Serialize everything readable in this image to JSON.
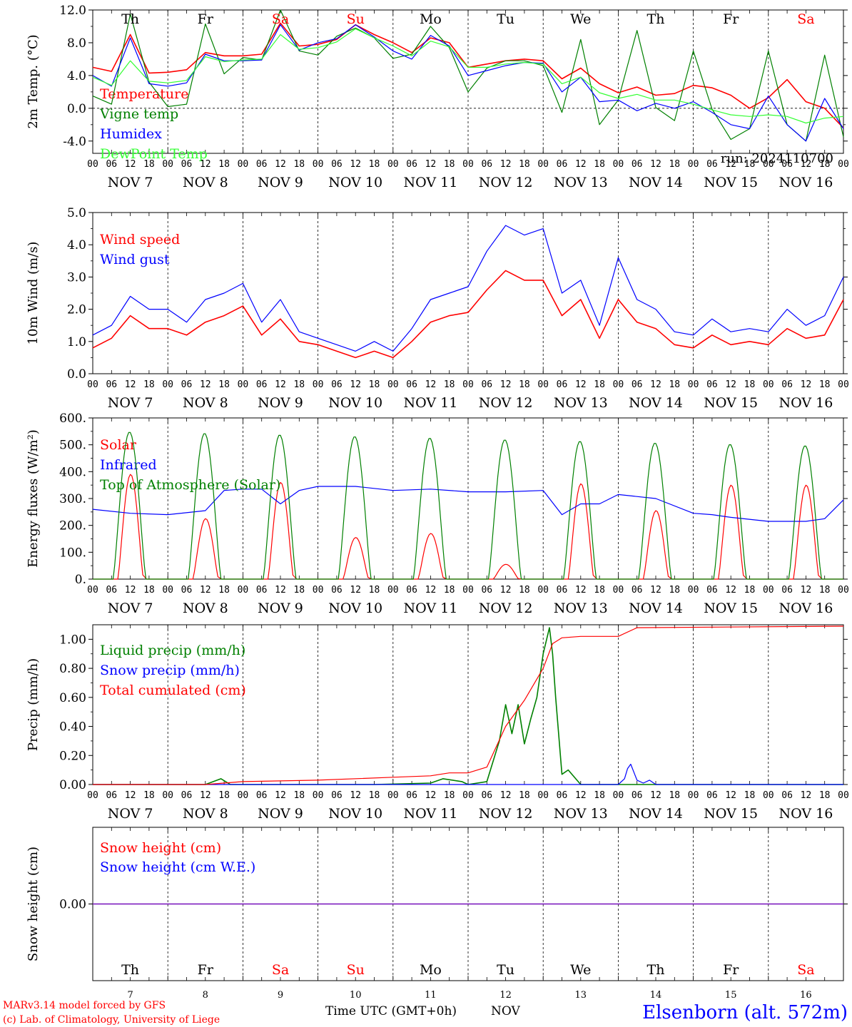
{
  "chart_data": [
    {
      "type": "line",
      "ylabel": "2m Temp. (°C)",
      "ylim": [
        -5.5,
        12.0
      ],
      "yticks": [
        -4.0,
        0.0,
        4.0,
        8.0,
        12.0
      ],
      "ytick_labels": [
        "-4.0",
        "0.0",
        "4.0",
        "8.0",
        "12.0"
      ],
      "zero_line": 0,
      "annotation": "run: 2024110700",
      "series": [
        {
          "name": "Temperature",
          "color": "#ff0000",
          "x": [
            0,
            6,
            12,
            18,
            24,
            30,
            36,
            42,
            48,
            54,
            60,
            66,
            72,
            78,
            84,
            90,
            96,
            102,
            108,
            114,
            120,
            126,
            132,
            138,
            144,
            150,
            156,
            162,
            168,
            174,
            180,
            186,
            192,
            198,
            204,
            210,
            216,
            222,
            228,
            234,
            240
          ],
          "values": [
            5.0,
            4.5,
            9.0,
            4.3,
            4.4,
            4.7,
            6.8,
            6.4,
            6.4,
            6.6,
            10.4,
            7.6,
            7.8,
            8.4,
            10.2,
            9.0,
            8.0,
            6.8,
            8.6,
            8.0,
            5.0,
            5.4,
            5.8,
            6.0,
            5.8,
            3.6,
            4.9,
            3.0,
            1.9,
            2.6,
            1.6,
            1.8,
            2.8,
            2.5,
            1.6,
            0.0,
            1.3,
            3.5,
            0.8,
            0.0,
            -2.4
          ]
        },
        {
          "name": "Vigne temp",
          "color": "#008000",
          "x": [
            0,
            6,
            12,
            18,
            24,
            30,
            36,
            42,
            48,
            54,
            60,
            66,
            72,
            78,
            84,
            90,
            96,
            102,
            108,
            114,
            120,
            126,
            132,
            138,
            144,
            150,
            156,
            162,
            168,
            174,
            180,
            186,
            192,
            198,
            204,
            210,
            216,
            222,
            228,
            234,
            240
          ],
          "values": [
            1.5,
            0.5,
            11.5,
            3.2,
            0.2,
            0.5,
            10.3,
            4.2,
            6.2,
            5.9,
            12.0,
            7.0,
            6.5,
            8.8,
            9.8,
            8.6,
            6.1,
            6.6,
            10.0,
            7.4,
            2.0,
            4.9,
            5.8,
            5.8,
            5.2,
            -0.5,
            8.4,
            -2.0,
            1.0,
            9.5,
            0.1,
            -1.5,
            7.0,
            -0.1,
            -3.8,
            -2.5,
            7.0,
            -2.0,
            -4.0,
            6.5,
            -3.5
          ]
        },
        {
          "name": "Humidex",
          "color": "#0000ff",
          "x": [
            0,
            6,
            12,
            18,
            24,
            30,
            36,
            42,
            48,
            54,
            60,
            66,
            72,
            78,
            84,
            90,
            96,
            102,
            108,
            114,
            120,
            126,
            132,
            138,
            144,
            150,
            156,
            162,
            168,
            174,
            180,
            186,
            192,
            198,
            204,
            210,
            216,
            222,
            228,
            234,
            240
          ],
          "values": [
            4.0,
            2.7,
            8.6,
            3.0,
            2.7,
            3.1,
            6.6,
            5.8,
            5.8,
            5.9,
            10.2,
            7.1,
            8.0,
            8.5,
            10.2,
            8.7,
            7.0,
            6.0,
            8.9,
            7.6,
            4.0,
            4.6,
            5.2,
            5.6,
            5.5,
            2.0,
            3.8,
            0.8,
            1.0,
            -0.3,
            0.6,
            0.0,
            0.8,
            -0.5,
            -2.0,
            -2.5,
            1.5,
            -2.0,
            -4.0,
            1.2,
            -2.5
          ]
        },
        {
          "name": "DewPoint Temp",
          "color": "#33ff33",
          "x": [
            0,
            6,
            12,
            18,
            24,
            30,
            36,
            42,
            48,
            54,
            60,
            66,
            72,
            78,
            84,
            90,
            96,
            102,
            108,
            114,
            120,
            126,
            132,
            138,
            144,
            150,
            156,
            162,
            168,
            174,
            180,
            186,
            192,
            198,
            204,
            210,
            216,
            222,
            228,
            234,
            240
          ],
          "values": [
            3.8,
            2.8,
            5.8,
            3.3,
            3.1,
            3.4,
            6.3,
            5.7,
            5.9,
            6.0,
            9.0,
            7.2,
            7.4,
            8.1,
            9.7,
            8.6,
            7.6,
            6.4,
            8.2,
            7.5,
            5.0,
            5.0,
            5.4,
            5.6,
            5.4,
            3.0,
            3.8,
            1.9,
            1.2,
            1.7,
            1.0,
            1.0,
            0.5,
            -0.2,
            -0.8,
            -1.0,
            -0.8,
            -1.0,
            -1.8,
            -1.2,
            -1.0
          ]
        }
      ]
    },
    {
      "type": "line",
      "ylabel": "10m Wind (m/s)",
      "ylim": [
        0.0,
        5.0
      ],
      "yticks": [
        0.0,
        1.0,
        2.0,
        3.0,
        4.0,
        5.0
      ],
      "ytick_labels": [
        "0.0",
        "1.0",
        "2.0",
        "3.0",
        "4.0",
        "5.0"
      ],
      "series": [
        {
          "name": "Wind speed",
          "color": "#ff0000",
          "x": [
            0,
            6,
            12,
            18,
            24,
            30,
            36,
            42,
            48,
            54,
            60,
            66,
            72,
            78,
            84,
            90,
            96,
            102,
            108,
            114,
            120,
            126,
            132,
            138,
            144,
            150,
            156,
            162,
            168,
            174,
            180,
            186,
            192,
            198,
            204,
            210,
            216,
            222,
            228,
            234,
            240
          ],
          "values": [
            0.8,
            1.1,
            1.8,
            1.4,
            1.4,
            1.2,
            1.6,
            1.8,
            2.1,
            1.2,
            1.7,
            1.0,
            0.9,
            0.7,
            0.5,
            0.7,
            0.5,
            1.0,
            1.6,
            1.8,
            1.9,
            2.6,
            3.2,
            2.9,
            2.9,
            1.8,
            2.3,
            1.1,
            2.3,
            1.6,
            1.4,
            0.9,
            0.8,
            1.2,
            0.9,
            1.0,
            0.9,
            1.4,
            1.1,
            1.2,
            2.3
          ]
        },
        {
          "name": "Wind gust",
          "color": "#0000ff",
          "x": [
            0,
            6,
            12,
            18,
            24,
            30,
            36,
            42,
            48,
            54,
            60,
            66,
            72,
            78,
            84,
            90,
            96,
            102,
            108,
            114,
            120,
            126,
            132,
            138,
            144,
            150,
            156,
            162,
            168,
            174,
            180,
            186,
            192,
            198,
            204,
            210,
            216,
            222,
            228,
            234,
            240
          ],
          "values": [
            1.2,
            1.5,
            2.4,
            2.0,
            2.0,
            1.6,
            2.3,
            2.5,
            2.8,
            1.6,
            2.3,
            1.3,
            1.1,
            0.9,
            0.7,
            1.0,
            0.7,
            1.4,
            2.3,
            2.5,
            2.7,
            3.8,
            4.6,
            4.3,
            4.5,
            2.5,
            2.9,
            1.5,
            3.6,
            2.3,
            2.0,
            1.3,
            1.2,
            1.7,
            1.3,
            1.4,
            1.3,
            2.0,
            1.5,
            1.8,
            3.0
          ]
        }
      ]
    },
    {
      "type": "line",
      "ylabel": "Energy fluxes (W/m²)",
      "ylim": [
        0,
        600
      ],
      "yticks": [
        0,
        100,
        200,
        300,
        400,
        500,
        600
      ],
      "ytick_labels": [
        "0.",
        "100.",
        "200.",
        "300.",
        "400.",
        "500.",
        "600."
      ],
      "series": [
        {
          "name": "Solar",
          "color": "#ff0000",
          "day_peaks": [
            390,
            225,
            360,
            155,
            170,
            55,
            355,
            255,
            350,
            350
          ]
        },
        {
          "name": "Infrared",
          "color": "#0000ff",
          "x": [
            0,
            12,
            24,
            36,
            42,
            48,
            54,
            60,
            66,
            72,
            84,
            96,
            108,
            120,
            132,
            144,
            150,
            156,
            162,
            168,
            180,
            192,
            198,
            204,
            216,
            228,
            234,
            240
          ],
          "values": [
            260,
            245,
            240,
            255,
            330,
            335,
            335,
            280,
            330,
            345,
            345,
            330,
            335,
            325,
            325,
            330,
            240,
            280,
            280,
            315,
            300,
            245,
            240,
            230,
            215,
            215,
            225,
            295
          ]
        },
        {
          "name": "Top of Atmosphere (Solar)",
          "color": "#008000",
          "day_peaks": [
            548,
            543,
            537,
            531,
            525,
            519,
            513,
            507,
            502,
            497
          ]
        }
      ]
    },
    {
      "type": "line",
      "ylabel": "Precip (mm/h)",
      "ylim": [
        0,
        1.1
      ],
      "yticks": [
        0.0,
        0.2,
        0.4,
        0.6,
        0.8,
        1.0
      ],
      "ytick_labels": [
        "0.00",
        "0.20",
        "0.40",
        "0.60",
        "0.80",
        "1.00"
      ],
      "series": [
        {
          "name": "Liquid precip (mm/h)",
          "color": "#008000",
          "x": [
            0,
            36,
            41,
            44,
            60,
            90,
            108,
            112,
            118,
            120,
            126,
            130,
            132,
            134,
            136,
            138,
            140,
            142,
            144,
            146,
            147,
            148,
            150,
            152,
            156,
            168,
            240
          ],
          "values": [
            0,
            0,
            0.04,
            0.0,
            0,
            0,
            0.01,
            0.04,
            0.02,
            0.0,
            0.02,
            0.3,
            0.55,
            0.35,
            0.55,
            0.28,
            0.45,
            0.6,
            0.9,
            1.08,
            0.9,
            0.6,
            0.07,
            0.1,
            0.0,
            0.0,
            0.0
          ]
        },
        {
          "name": "Snow precip (mm/h)",
          "color": "#0000ff",
          "x": [
            0,
            168,
            170,
            171,
            172,
            174,
            176,
            178,
            180,
            240
          ],
          "values": [
            0,
            0,
            0.04,
            0.11,
            0.14,
            0.03,
            0.01,
            0.03,
            0.0,
            0.0
          ]
        },
        {
          "name": "Total cumulated (cm)",
          "color": "#ff0000",
          "x": [
            0,
            36,
            48,
            72,
            96,
            108,
            114,
            120,
            126,
            132,
            138,
            144,
            147,
            150,
            156,
            168,
            174,
            240
          ],
          "values": [
            0,
            0,
            0.02,
            0.03,
            0.05,
            0.06,
            0.08,
            0.08,
            0.12,
            0.4,
            0.58,
            0.8,
            0.97,
            1.01,
            1.02,
            1.02,
            1.08,
            1.09
          ]
        }
      ]
    },
    {
      "type": "line",
      "ylabel": "Snow height (cm)",
      "yticks": [
        0.0
      ],
      "ytick_labels": [
        "0.00"
      ],
      "series": [
        {
          "name": "Snow height (cm)",
          "color": "#ff0000",
          "x": [
            0,
            240
          ],
          "values": [
            0,
            0
          ]
        },
        {
          "name": "Snow height (cm W.E.)",
          "color": "#0000ff",
          "x": [
            0,
            240
          ],
          "values": [
            0,
            0
          ]
        }
      ]
    }
  ],
  "x_axis": {
    "hour_labels": [
      "00",
      "06",
      "12",
      "18"
    ],
    "end_label": "00",
    "day_labels": [
      "NOV  7",
      "NOV  8",
      "NOV  9",
      "NOV 10",
      "NOV 11",
      "NOV 12",
      "NOV 13",
      "NOV 14",
      "NOV 15",
      "NOV 16"
    ],
    "weekdays": [
      "Th",
      "Fr",
      "Sa",
      "Su",
      "Mo",
      "Tu",
      "We",
      "Th",
      "Fr",
      "Sa"
    ],
    "weekend_color": "#ff0000",
    "weekday_color": "#000000",
    "day_numbers": [
      "7",
      "8",
      "9",
      "10",
      "11",
      "12",
      "13",
      "14",
      "15",
      "16"
    ],
    "title": "Time UTC (GMT+0h)",
    "month": "NOV"
  },
  "footer": {
    "model_line": "MARv3.14 model forced by GFS",
    "credit_line": "(c) Lab. of Climatology, University of Liege",
    "station": "Elsenborn (alt. 572m)",
    "footer_color": "#ff0000",
    "station_color": "#0000ff"
  }
}
